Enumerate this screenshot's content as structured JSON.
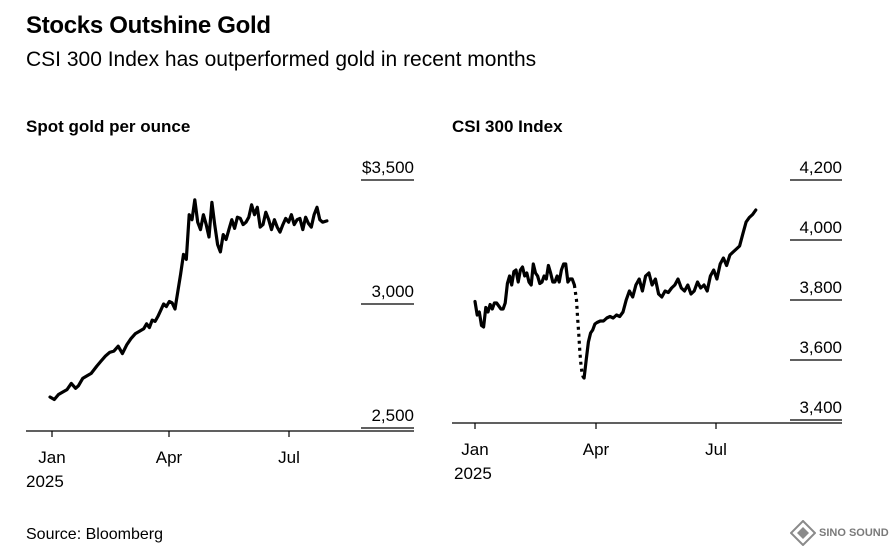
{
  "header": {
    "title": "Stocks Outshine Gold",
    "subtitle": "CSI 300 Index has outperformed gold in recent months"
  },
  "footer": {
    "source": "Source: Bloomberg",
    "logo_text": "SINO SOUND"
  },
  "colors": {
    "line": "#000000",
    "axis": "#000000",
    "logo": "#8a8a8a"
  },
  "chart_data": [
    {
      "type": "line",
      "title": "Spot gold per ounce",
      "y_ticks": [
        2500,
        3000,
        3500
      ],
      "y_tick_labels": [
        "2,500",
        "3,000",
        "$3,500"
      ],
      "ylim": [
        2500,
        3500
      ],
      "x_ticks": [
        "Jan",
        "Apr",
        "Jul"
      ],
      "x_tick_sublabel": "2025",
      "series": [
        {
          "name": "Spot gold",
          "x": [
            0,
            3,
            6,
            9,
            12,
            15,
            18,
            20,
            23,
            26,
            29,
            33,
            36,
            39,
            42,
            45,
            48,
            51,
            54,
            57,
            60,
            63,
            66,
            68,
            70,
            72,
            74,
            76,
            78,
            80,
            82,
            84,
            86,
            88,
            90,
            92,
            94,
            96,
            98,
            100,
            102,
            104,
            106,
            108,
            110,
            112,
            114,
            116,
            118,
            120,
            122,
            124,
            126,
            128,
            130,
            132,
            134,
            136,
            138,
            140,
            142,
            144,
            146,
            148,
            150,
            152,
            154,
            156,
            158,
            160,
            162,
            164,
            166,
            168,
            170,
            172,
            174,
            176,
            178,
            180,
            182,
            184,
            186,
            188,
            190,
            192,
            195
          ],
          "y": [
            2625,
            2615,
            2635,
            2645,
            2655,
            2680,
            2660,
            2670,
            2700,
            2710,
            2720,
            2750,
            2770,
            2790,
            2805,
            2810,
            2830,
            2800,
            2835,
            2860,
            2880,
            2890,
            2900,
            2920,
            2905,
            2935,
            2930,
            2950,
            2975,
            3000,
            2990,
            3010,
            3005,
            2980,
            3050,
            3120,
            3200,
            3180,
            3360,
            3340,
            3420,
            3330,
            3300,
            3360,
            3320,
            3270,
            3410,
            3320,
            3240,
            3210,
            3280,
            3260,
            3300,
            3340,
            3305,
            3350,
            3345,
            3320,
            3330,
            3350,
            3400,
            3360,
            3390,
            3310,
            3320,
            3370,
            3340,
            3300,
            3340,
            3310,
            3290,
            3320,
            3345,
            3330,
            3360,
            3320,
            3340,
            3345,
            3300,
            3350,
            3325,
            3310,
            3360,
            3390,
            3340,
            3330,
            3335
          ]
        }
      ]
    },
    {
      "type": "line",
      "title": "CSI 300 Index",
      "y_ticks": [
        3400,
        3600,
        3800,
        4000,
        4200
      ],
      "y_tick_labels": [
        "3,400",
        "3,600",
        "3,800",
        "4,000",
        "4,200"
      ],
      "ylim": [
        3400,
        4200
      ],
      "x_ticks": [
        "Jan",
        "Apr",
        "Jul"
      ],
      "x_tick_sublabel": "2025",
      "series": [
        {
          "name": "CSI 300 (solid)",
          "x": [
            0,
            2,
            4,
            6,
            8,
            10,
            12,
            14,
            16,
            18,
            20,
            22,
            24,
            26,
            28,
            30,
            32,
            34,
            36,
            38,
            40,
            42,
            44,
            46,
            48,
            50,
            52,
            54,
            56,
            58,
            60,
            62,
            64,
            66,
            68,
            70,
            72,
            74,
            76,
            78,
            80,
            82,
            84,
            86,
            88,
            90,
            92
          ],
          "y": [
            3795,
            3750,
            3760,
            3715,
            3710,
            3775,
            3760,
            3785,
            3770,
            3790,
            3790,
            3780,
            3770,
            3770,
            3790,
            3855,
            3880,
            3850,
            3895,
            3900,
            3860,
            3900,
            3910,
            3880,
            3890,
            3860,
            3850,
            3920,
            3890,
            3880,
            3855,
            3860,
            3880,
            3870,
            3915,
            3890,
            3860,
            3860,
            3880,
            3860,
            3900,
            3920,
            3920,
            3860,
            3870,
            3870,
            3850
          ]
        },
        {
          "name": "CSI 300 (gap, dotted)",
          "x": [
            92,
            94,
            95,
            96,
            97,
            98,
            99,
            100,
            101
          ],
          "y": [
            3850,
            3800,
            3740,
            3690,
            3630,
            3590,
            3560,
            3545,
            3540
          ]
        },
        {
          "name": "CSI 300 (solid, recovery)",
          "x": [
            101,
            103,
            105,
            107,
            109,
            111,
            113,
            116,
            119,
            122,
            125,
            128,
            131,
            134,
            137,
            140,
            143,
            146,
            149,
            152,
            155,
            158,
            161,
            164,
            167,
            170,
            173,
            176,
            179,
            182,
            185,
            188,
            191,
            194,
            197,
            200,
            203,
            206,
            209,
            212,
            215,
            218,
            221,
            224,
            227,
            230,
            233,
            236,
            239,
            242,
            245,
            248,
            251,
            254,
            257,
            260
          ],
          "y": [
            3540,
            3600,
            3660,
            3690,
            3700,
            3720,
            3725,
            3730,
            3730,
            3740,
            3745,
            3740,
            3750,
            3745,
            3760,
            3800,
            3830,
            3810,
            3850,
            3870,
            3830,
            3880,
            3890,
            3850,
            3870,
            3820,
            3810,
            3830,
            3825,
            3840,
            3850,
            3870,
            3840,
            3830,
            3850,
            3820,
            3830,
            3860,
            3840,
            3850,
            3830,
            3880,
            3900,
            3870,
            3920,
            3940,
            3915,
            3950,
            3960,
            3970,
            3980,
            4020,
            4060,
            4075,
            4085,
            4100
          ]
        }
      ]
    }
  ]
}
